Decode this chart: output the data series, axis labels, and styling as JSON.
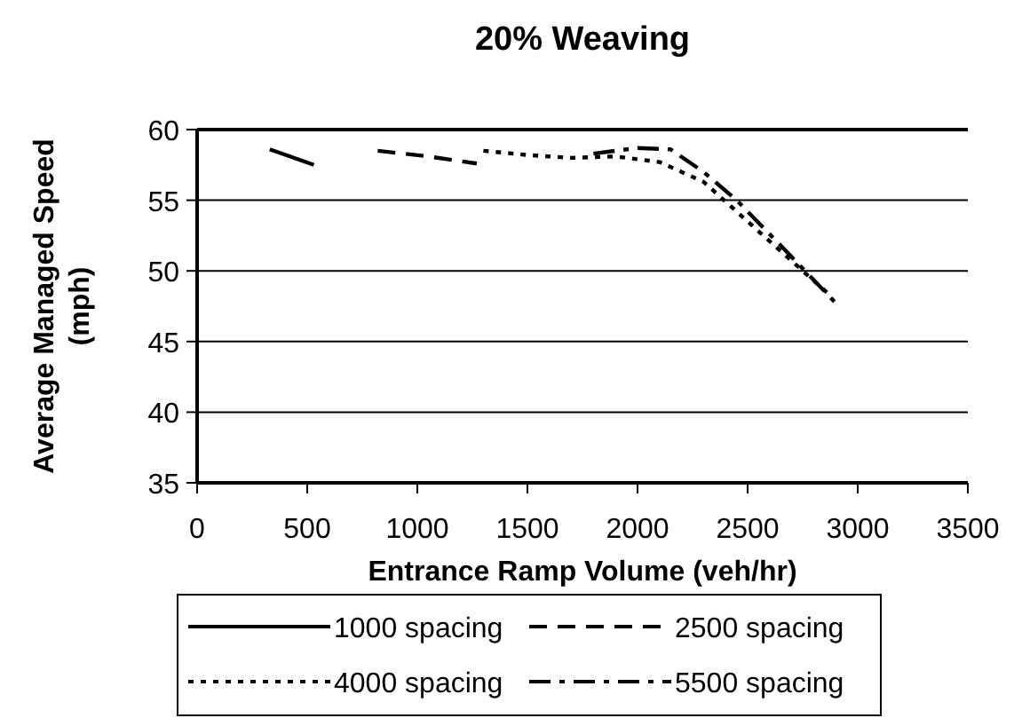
{
  "chart_data": {
    "type": "line",
    "title": "20% Weaving",
    "xlabel": "Entrance Ramp Volume (veh/hr)",
    "ylabel": "Average Managed Speed\n(mph)",
    "xlim": [
      0,
      3500
    ],
    "xticks": [
      0,
      500,
      1000,
      1500,
      2000,
      2500,
      3000,
      3500
    ],
    "ylim": [
      35,
      60
    ],
    "yticks": [
      35,
      40,
      45,
      50,
      55,
      60
    ],
    "grid": "y",
    "legend": "bottom",
    "marker": "none",
    "series": [
      {
        "name": "1000 spacing",
        "color": "#000000",
        "line_style": "solid",
        "x": [
          330,
          530
        ],
        "values": [
          58.6,
          57.5
        ]
      },
      {
        "name": "2500 spacing",
        "color": "#000000",
        "line_style": "dashed",
        "x": [
          820,
          1050,
          1270
        ],
        "values": [
          58.5,
          58.1,
          57.6
        ]
      },
      {
        "name": "4000 spacing",
        "color": "#000000",
        "line_style": "dotted",
        "x": [
          1300,
          1500,
          1700,
          1900,
          2100,
          2300,
          2500,
          2750,
          2880
        ],
        "values": [
          58.5,
          58.2,
          58.0,
          58.1,
          57.7,
          56.3,
          53.5,
          50.0,
          48.2
        ]
      },
      {
        "name": "5500 spacing",
        "color": "#000000",
        "line_style": "dashdot",
        "x": [
          1800,
          2000,
          2150,
          2300,
          2450,
          2650,
          2920
        ],
        "values": [
          58.3,
          58.7,
          58.6,
          57.0,
          55.0,
          51.8,
          47.4
        ]
      }
    ]
  }
}
